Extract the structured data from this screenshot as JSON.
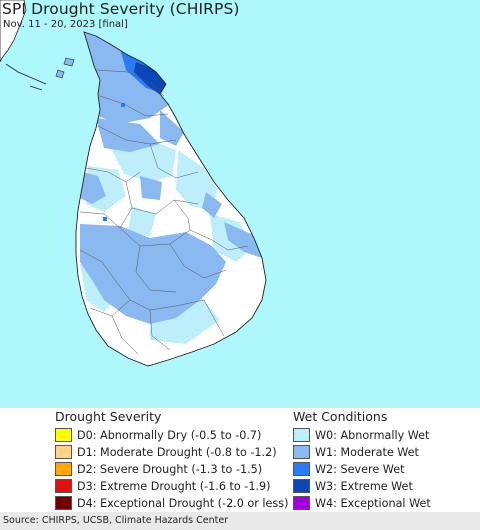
{
  "title": "SPI Drought Severity (CHIRPS)",
  "subtitle": "Nov. 11 - 20, 2023 [final]",
  "colors": {
    "ocean": "#aef7fb",
    "land": "#ffffff",
    "W0": "#bfeefb",
    "W1": "#8ab8f1",
    "W2": "#2a7cf5",
    "W3": "#0b47b9",
    "W4": "#a100dd"
  },
  "legend": {
    "drought_title": "Drought Severity",
    "wet_title": "Wet Conditions",
    "drought_items": [
      {
        "code": "D0",
        "label": "D0: Abnormally Dry (-0.5 to -0.7)",
        "color": "#ffff00"
      },
      {
        "code": "D1",
        "label": "D1: Moderate Drought (-0.8 to -1.2)",
        "color": "#fdd38e"
      },
      {
        "code": "D2",
        "label": "D2: Severe Drought (-1.3 to -1.5)",
        "color": "#ffa500"
      },
      {
        "code": "D3",
        "label": "D3: Extreme Drought (-1.6 to -1.9)",
        "color": "#e01010"
      },
      {
        "code": "D4",
        "label": "D4: Exceptional Drought (-2.0 or less)",
        "color": "#720000"
      }
    ],
    "wet_items": [
      {
        "code": "W0",
        "label": "W0: Abnormally Wet",
        "color": "#bfeefb"
      },
      {
        "code": "W1",
        "label": "W1: Moderate Wet",
        "color": "#8ab8f1"
      },
      {
        "code": "W2",
        "label": "W2: Severe Wet",
        "color": "#2a7cf5"
      },
      {
        "code": "W3",
        "label": "W3: Extreme Wet",
        "color": "#0b47b9"
      },
      {
        "code": "W4",
        "label": "W4: Exceptional Wet",
        "color": "#a100dd"
      }
    ]
  },
  "source": "Source: CHIRPS, UCSB, Climate Hazards Center"
}
